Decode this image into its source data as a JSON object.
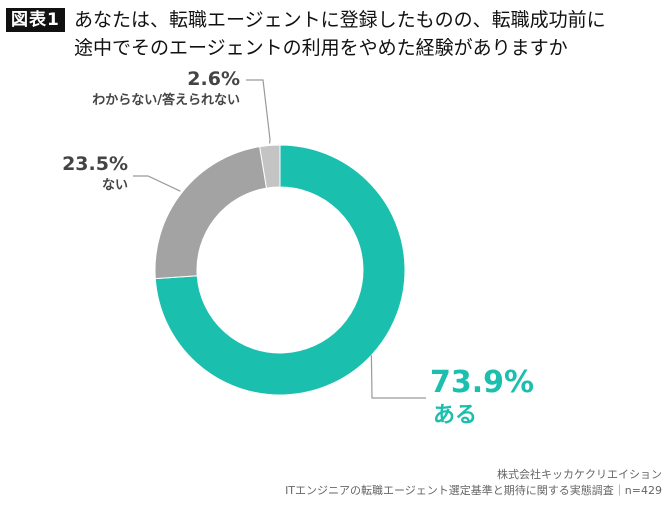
{
  "header": {
    "badge": "図表1",
    "title_line1": "あなたは、転職エージェントに登録したものの、転職成功前に",
    "title_line2": "途中でそのエージェントの利用をやめた経験がありますか"
  },
  "colors": {
    "aru": "#1ABFAE",
    "nai": "#A3A3A3",
    "wakaranai": "#C4C4C4",
    "leader": "#9A9A9A",
    "text_dark": "#444444"
  },
  "chart_data": {
    "type": "pie",
    "donut": true,
    "unit": "%",
    "slices": [
      {
        "label": "ある",
        "value": 73.9,
        "value_text": "73.9%"
      },
      {
        "label": "ない",
        "value": 23.5,
        "value_text": "23.5%"
      },
      {
        "label": "わからない/答えられない",
        "value": 2.6,
        "value_text": "2.6%"
      }
    ]
  },
  "footer": {
    "company": "株式会社キッカケクリエイション",
    "source": "ITエンジニアの転職エージェント選定基準と期待に関する実態調査｜n=429"
  }
}
